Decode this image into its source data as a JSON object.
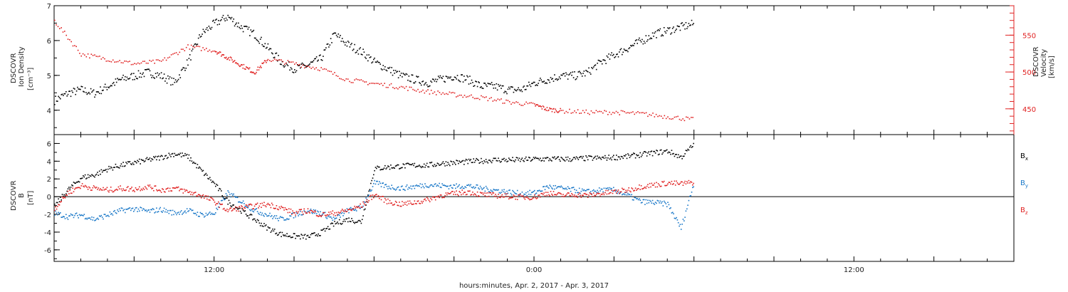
{
  "xaxis_label": "hours:minutes, Apr.  2, 2017 - Apr.  3, 2017",
  "chart_data": [
    {
      "type": "scatter",
      "panel": "top",
      "ylabel_left": [
        "DSCOVR",
        "Ion Density",
        "[cm⁻³]"
      ],
      "ylabel_right": [
        "DSCOVR",
        "Velocity",
        "[km/s]"
      ],
      "x_ticks": [
        "12:00",
        "0:00",
        "12:00"
      ],
      "x_range_hours": [
        6,
        42
      ],
      "y_ticks_left": [
        "7",
        "6",
        "5",
        "4"
      ],
      "ylim_left": [
        3.3,
        7.0
      ],
      "y_ticks_right": [
        "550",
        "500",
        "450"
      ],
      "ylim_right": [
        415,
        590
      ],
      "grid": false,
      "colors": {
        "density": "#000000",
        "velocity": "#e02020"
      },
      "series": [
        {
          "key": "density",
          "axis": "left",
          "points": [
            [
              6.0,
              4.3
            ],
            [
              6.5,
              4.5
            ],
            [
              7.0,
              4.6
            ],
            [
              7.5,
              4.5
            ],
            [
              8.0,
              4.7
            ],
            [
              8.5,
              4.9
            ],
            [
              9.0,
              5.0
            ],
            [
              9.5,
              5.1
            ],
            [
              10.0,
              5.0
            ],
            [
              10.5,
              4.8
            ],
            [
              11.0,
              5.4
            ],
            [
              11.5,
              6.2
            ],
            [
              12.0,
              6.5
            ],
            [
              12.5,
              6.7
            ],
            [
              13.0,
              6.4
            ],
            [
              13.5,
              6.2
            ],
            [
              14.0,
              5.8
            ],
            [
              14.5,
              5.4
            ],
            [
              15.0,
              5.2
            ],
            [
              15.5,
              5.3
            ],
            [
              16.0,
              5.5
            ],
            [
              16.5,
              6.2
            ],
            [
              17.0,
              5.9
            ],
            [
              17.5,
              5.7
            ],
            [
              18.0,
              5.4
            ],
            [
              18.5,
              5.2
            ],
            [
              19.0,
              5.0
            ],
            [
              19.5,
              4.9
            ],
            [
              20.0,
              4.8
            ],
            [
              20.5,
              4.9
            ],
            [
              21.0,
              5.0
            ],
            [
              21.5,
              4.9
            ],
            [
              22.0,
              4.7
            ],
            [
              22.5,
              4.7
            ],
            [
              23.0,
              4.6
            ],
            [
              23.5,
              4.6
            ],
            [
              24.0,
              4.8
            ],
            [
              24.5,
              4.9
            ],
            [
              25.0,
              5.0
            ],
            [
              25.5,
              5.0
            ],
            [
              26.0,
              5.1
            ],
            [
              26.5,
              5.4
            ],
            [
              27.0,
              5.6
            ],
            [
              27.5,
              5.8
            ],
            [
              28.0,
              6.0
            ],
            [
              28.5,
              6.2
            ],
            [
              29.0,
              6.3
            ],
            [
              29.5,
              6.4
            ],
            [
              30.0,
              6.5
            ]
          ]
        },
        {
          "key": "velocity",
          "axis": "right",
          "points": [
            [
              6.0,
              570
            ],
            [
              7.0,
              525
            ],
            [
              8.0,
              518
            ],
            [
              9.0,
              512
            ],
            [
              10.0,
              515
            ],
            [
              11.0,
              535
            ],
            [
              12.0,
              530
            ],
            [
              12.5,
              520
            ],
            [
              13.0,
              510
            ],
            [
              13.5,
              500
            ],
            [
              14.0,
              518
            ],
            [
              15.0,
              512
            ],
            [
              16.0,
              505
            ],
            [
              17.0,
              490
            ],
            [
              18.0,
              485
            ],
            [
              19.0,
              480
            ],
            [
              20.0,
              474
            ],
            [
              21.0,
              470
            ],
            [
              22.0,
              466
            ],
            [
              23.0,
              460
            ],
            [
              24.0,
              456
            ],
            [
              24.5,
              450
            ],
            [
              25.0,
              448
            ],
            [
              26.0,
              446
            ],
            [
              27.0,
              446
            ],
            [
              28.0,
              444
            ],
            [
              29.0,
              440
            ],
            [
              30.0,
              436
            ]
          ]
        }
      ]
    },
    {
      "type": "scatter",
      "panel": "bottom",
      "ylabel_left": [
        "DSCOVR",
        "B",
        "[nT]"
      ],
      "x_ticks": [
        "12:00",
        "0:00",
        "12:00"
      ],
      "x_range_hours": [
        6,
        42
      ],
      "y_ticks": [
        "6",
        "4",
        "2",
        "0",
        "-2",
        "-4",
        "-6"
      ],
      "ylim": [
        -7.3,
        7.0
      ],
      "zero_line": true,
      "grid": false,
      "legend_placement": "right",
      "colors": {
        "bx": "#000000",
        "by": "#1a78c8",
        "bz": "#e02020"
      },
      "series": [
        {
          "key": "bx",
          "legend_base": "B",
          "legend_sub": "x",
          "points": [
            [
              6.0,
              -1.0
            ],
            [
              6.5,
              0.8
            ],
            [
              7.0,
              2.2
            ],
            [
              7.5,
              2.5
            ],
            [
              8.0,
              3.2
            ],
            [
              8.5,
              3.6
            ],
            [
              9.0,
              3.9
            ],
            [
              9.5,
              4.2
            ],
            [
              10.0,
              4.5
            ],
            [
              10.5,
              4.9
            ],
            [
              11.0,
              4.6
            ],
            [
              11.5,
              3.0
            ],
            [
              12.0,
              1.5
            ],
            [
              12.5,
              -0.5
            ],
            [
              13.0,
              -1.5
            ],
            [
              13.5,
              -2.5
            ],
            [
              14.0,
              -3.5
            ],
            [
              14.5,
              -4.2
            ],
            [
              15.0,
              -4.4
            ],
            [
              15.5,
              -4.5
            ],
            [
              16.0,
              -4.0
            ],
            [
              16.5,
              -3.0
            ],
            [
              17.0,
              -2.5
            ],
            [
              17.5,
              -2.8
            ],
            [
              18.0,
              3.2
            ],
            [
              18.5,
              3.4
            ],
            [
              19.0,
              3.5
            ],
            [
              19.5,
              3.6
            ],
            [
              20.0,
              3.6
            ],
            [
              20.5,
              3.8
            ],
            [
              21.0,
              3.9
            ],
            [
              21.5,
              4.0
            ],
            [
              22.0,
              4.1
            ],
            [
              22.5,
              4.2
            ],
            [
              23.0,
              4.2
            ],
            [
              23.5,
              4.2
            ],
            [
              24.0,
              4.3
            ],
            [
              24.5,
              4.3
            ],
            [
              25.0,
              4.3
            ],
            [
              25.5,
              4.3
            ],
            [
              26.0,
              4.4
            ],
            [
              26.5,
              4.4
            ],
            [
              27.0,
              4.5
            ],
            [
              27.5,
              4.6
            ],
            [
              28.0,
              4.8
            ],
            [
              28.5,
              5.0
            ],
            [
              29.0,
              5.2
            ],
            [
              29.5,
              4.5
            ],
            [
              30.0,
              6.0
            ]
          ]
        },
        {
          "key": "by",
          "legend_base": "B",
          "legend_sub": "y",
          "points": [
            [
              6.0,
              -1.8
            ],
            [
              6.5,
              -2.2
            ],
            [
              7.0,
              -2.0
            ],
            [
              7.5,
              -2.5
            ],
            [
              8.0,
              -2.0
            ],
            [
              8.5,
              -1.5
            ],
            [
              9.0,
              -1.3
            ],
            [
              9.5,
              -1.6
            ],
            [
              10.0,
              -1.4
            ],
            [
              10.5,
              -1.8
            ],
            [
              11.0,
              -1.5
            ],
            [
              11.5,
              -2.0
            ],
            [
              12.0,
              -1.8
            ],
            [
              12.5,
              0.5
            ],
            [
              13.0,
              -0.5
            ],
            [
              13.5,
              -1.5
            ],
            [
              14.0,
              -2.0
            ],
            [
              14.5,
              -2.5
            ],
            [
              15.0,
              -2.0
            ],
            [
              15.5,
              -1.5
            ],
            [
              16.0,
              -1.8
            ],
            [
              16.5,
              -2.5
            ],
            [
              17.0,
              -1.5
            ],
            [
              17.5,
              -1.2
            ],
            [
              18.0,
              1.6
            ],
            [
              18.5,
              1.2
            ],
            [
              19.0,
              1.0
            ],
            [
              19.5,
              1.2
            ],
            [
              20.0,
              1.4
            ],
            [
              20.5,
              1.3
            ],
            [
              21.0,
              1.2
            ],
            [
              21.5,
              1.3
            ],
            [
              22.0,
              1.0
            ],
            [
              22.5,
              0.8
            ],
            [
              23.0,
              0.6
            ],
            [
              23.5,
              0.4
            ],
            [
              24.0,
              0.5
            ],
            [
              24.5,
              1.2
            ],
            [
              25.0,
              1.0
            ],
            [
              25.5,
              0.8
            ],
            [
              26.0,
              0.6
            ],
            [
              26.5,
              0.8
            ],
            [
              27.0,
              0.8
            ],
            [
              27.5,
              0.2
            ],
            [
              28.0,
              -0.5
            ],
            [
              28.5,
              -0.6
            ],
            [
              29.0,
              -0.8
            ],
            [
              29.5,
              -3.5
            ],
            [
              30.0,
              1.8
            ]
          ]
        },
        {
          "key": "bz",
          "legend_base": "B",
          "legend_sub": "z",
          "points": [
            [
              6.0,
              -1.3
            ],
            [
              6.5,
              0.5
            ],
            [
              7.0,
              1.3
            ],
            [
              7.5,
              1.0
            ],
            [
              8.0,
              0.8
            ],
            [
              8.5,
              1.0
            ],
            [
              9.0,
              0.9
            ],
            [
              9.5,
              1.2
            ],
            [
              10.0,
              0.8
            ],
            [
              10.5,
              1.0
            ],
            [
              11.0,
              0.6
            ],
            [
              11.5,
              0.2
            ],
            [
              12.0,
              -0.5
            ],
            [
              12.5,
              -1.5
            ],
            [
              13.0,
              -1.2
            ],
            [
              13.5,
              -1.0
            ],
            [
              14.0,
              -0.8
            ],
            [
              14.5,
              -1.2
            ],
            [
              15.0,
              -1.8
            ],
            [
              15.5,
              -1.5
            ],
            [
              16.0,
              -2.0
            ],
            [
              16.5,
              -1.8
            ],
            [
              17.0,
              -1.5
            ],
            [
              17.5,
              -1.0
            ],
            [
              18.0,
              0.3
            ],
            [
              18.5,
              -0.5
            ],
            [
              19.0,
              -0.8
            ],
            [
              19.5,
              -0.6
            ],
            [
              20.0,
              -0.3
            ],
            [
              20.5,
              0.2
            ],
            [
              21.0,
              0.4
            ],
            [
              21.5,
              0.6
            ],
            [
              22.0,
              0.3
            ],
            [
              22.5,
              0.2
            ],
            [
              23.0,
              0.1
            ],
            [
              23.5,
              0.0
            ],
            [
              24.0,
              0.0
            ],
            [
              24.5,
              0.5
            ],
            [
              25.0,
              0.2
            ],
            [
              25.5,
              0.3
            ],
            [
              26.0,
              0.2
            ],
            [
              26.5,
              0.4
            ],
            [
              27.0,
              0.6
            ],
            [
              27.5,
              0.8
            ],
            [
              28.0,
              1.2
            ],
            [
              28.5,
              1.4
            ],
            [
              29.0,
              1.6
            ],
            [
              29.5,
              1.5
            ],
            [
              30.0,
              1.7
            ]
          ]
        }
      ]
    }
  ]
}
